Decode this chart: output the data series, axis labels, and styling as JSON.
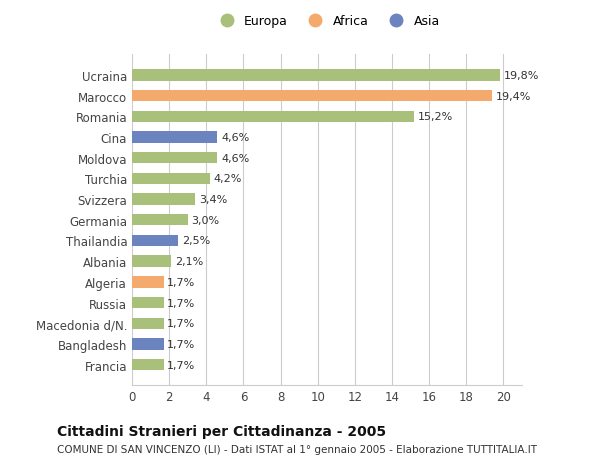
{
  "countries": [
    "Francia",
    "Bangladesh",
    "Macedonia d/N.",
    "Russia",
    "Algeria",
    "Albania",
    "Thailandia",
    "Germania",
    "Svizzera",
    "Turchia",
    "Moldova",
    "Cina",
    "Romania",
    "Marocco",
    "Ucraina"
  ],
  "values": [
    1.7,
    1.7,
    1.7,
    1.7,
    1.7,
    2.1,
    2.5,
    3.0,
    3.4,
    4.2,
    4.6,
    4.6,
    15.2,
    19.4,
    19.8
  ],
  "labels": [
    "1,7%",
    "1,7%",
    "1,7%",
    "1,7%",
    "1,7%",
    "2,1%",
    "2,5%",
    "3,0%",
    "3,4%",
    "4,2%",
    "4,6%",
    "4,6%",
    "15,2%",
    "19,4%",
    "19,8%"
  ],
  "colors": [
    "#a8c07a",
    "#6b84bf",
    "#a8c07a",
    "#a8c07a",
    "#f4a96d",
    "#a8c07a",
    "#6b84bf",
    "#a8c07a",
    "#a8c07a",
    "#a8c07a",
    "#a8c07a",
    "#6b84bf",
    "#a8c07a",
    "#f4a96d",
    "#a8c07a"
  ],
  "legend_labels": [
    "Europa",
    "Africa",
    "Asia"
  ],
  "legend_colors": [
    "#a8c07a",
    "#f4a96d",
    "#6b84bf"
  ],
  "title": "Cittadini Stranieri per Cittadinanza - 2005",
  "subtitle": "COMUNE DI SAN VINCENZO (LI) - Dati ISTAT al 1° gennaio 2005 - Elaborazione TUTTITALIA.IT",
  "xlim": [
    0,
    21
  ],
  "xticks": [
    0,
    2,
    4,
    6,
    8,
    10,
    12,
    14,
    16,
    18,
    20
  ],
  "background_color": "#ffffff",
  "bar_height": 0.55,
  "grid_color": "#cccccc",
  "label_fontsize": 8.0,
  "tick_fontsize": 8.5,
  "title_fontsize": 10.0,
  "subtitle_fontsize": 7.5
}
